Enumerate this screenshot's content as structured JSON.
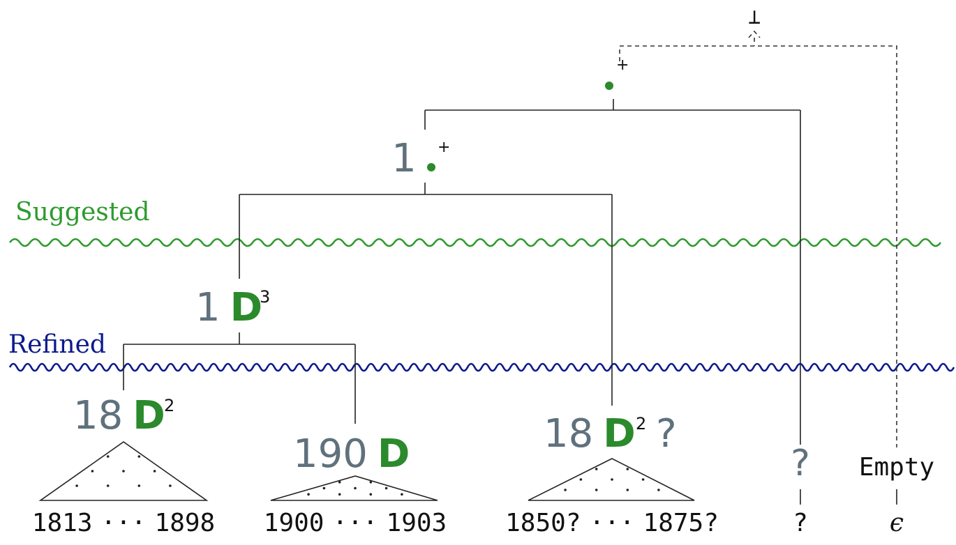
{
  "colors": {
    "suggested": "#2e9a2e",
    "refined": "#0b1a8c",
    "prefix_gray": "#5f717c",
    "accent_green": "#2b8a2b",
    "ink": "#111111"
  },
  "bands": {
    "suggested_label": "Suggested",
    "refined_label": "Refined"
  },
  "top": {
    "bottom_symbol": "⊥"
  },
  "nodes": {
    "root_dot": {
      "dot": "•",
      "sup": "+"
    },
    "one_dot": {
      "prefix": "1",
      "dot": "•",
      "sup": "+"
    },
    "one_D3": {
      "prefix": "1",
      "letter": "D",
      "sup": "3"
    },
    "eighteen_D2": {
      "prefix": "18",
      "letter": "D",
      "sup": "2"
    },
    "onenine_D": {
      "prefix": "190",
      "letter": "D"
    },
    "eighteen_D2q": {
      "prefix": "18",
      "letter": "D",
      "sup": "2",
      "suffix": "?"
    },
    "question": {
      "text": "?"
    },
    "empty": {
      "text": "Empty"
    }
  },
  "leaves": {
    "l1_start": "1813",
    "l1_end": "1898",
    "l2_start": "1900",
    "l2_end": "1903",
    "l3_start": "1850?",
    "l3_end": "1875?",
    "q_leaf": "?",
    "eps": "ϵ",
    "ellipsis": "···"
  }
}
